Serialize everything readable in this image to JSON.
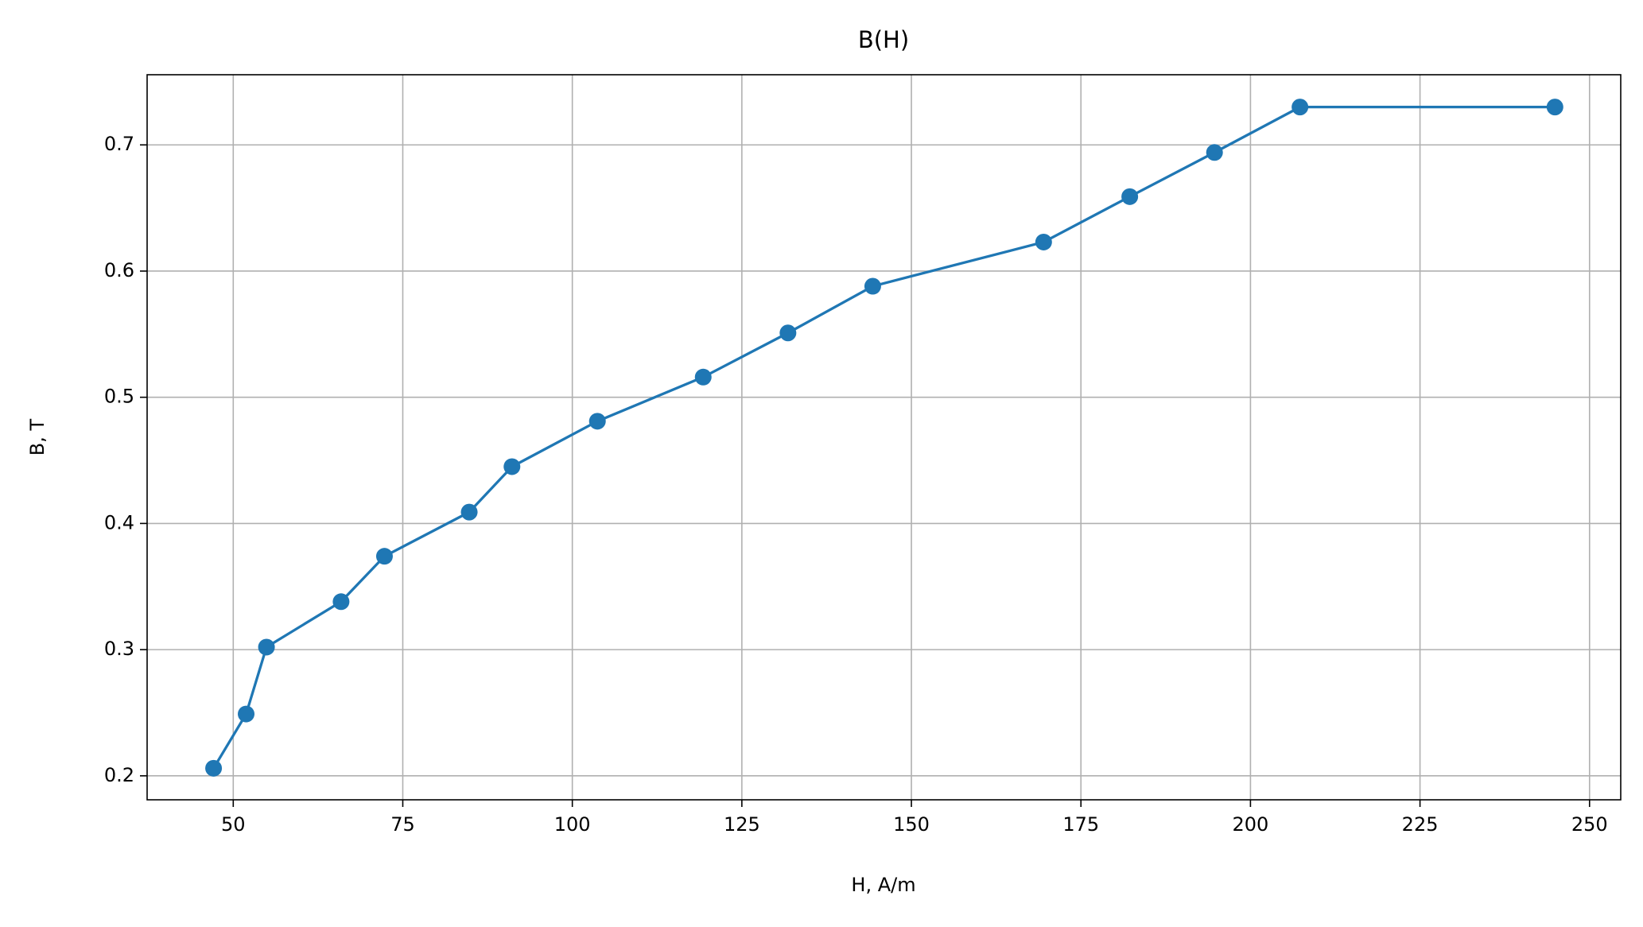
{
  "chart_data": {
    "type": "line",
    "title": "B(H)",
    "x_label": "H, A/m",
    "y_label": "B, T",
    "series": [
      {
        "color": "#1f77b4",
        "x": [
          47.1,
          51.9,
          54.9,
          65.9,
          72.3,
          84.8,
          91.1,
          103.7,
          119.3,
          131.8,
          144.3,
          169.5,
          182.2,
          194.7,
          207.3,
          244.9
        ],
        "values": [
          0.206,
          0.249,
          0.302,
          0.338,
          0.374,
          0.409,
          0.445,
          0.481,
          0.516,
          0.551,
          0.588,
          0.623,
          0.659,
          0.694,
          0.73,
          0.73
        ]
      }
    ],
    "xlim": [
      37.3,
      254.6
    ],
    "xticks": [
      50,
      75,
      100,
      125,
      150,
      175,
      200,
      225,
      250
    ],
    "ylim": [
      0.181,
      0.7556
    ],
    "yticks": [
      0.2,
      0.3,
      0.4,
      0.5,
      0.6,
      0.7
    ],
    "grid": true
  }
}
